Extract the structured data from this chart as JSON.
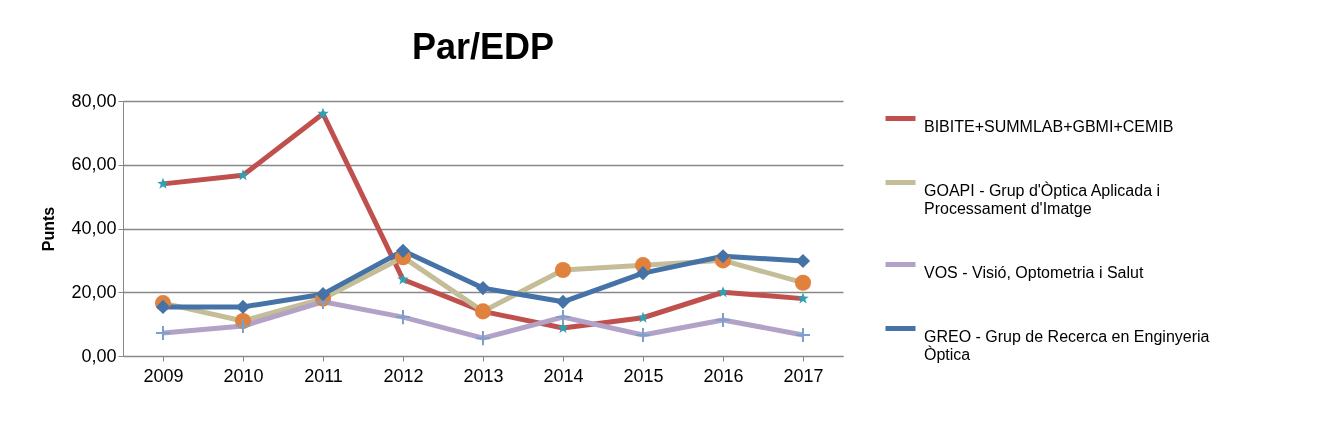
{
  "chart_data": {
    "type": "line",
    "title": "Par/EDP",
    "ylabel": "Punts",
    "categories": [
      "2009",
      "2010",
      "2011",
      "2012",
      "2013",
      "2014",
      "2015",
      "2016",
      "2017"
    ],
    "series": [
      {
        "name": "BIBITE+SUMMLAB+GBMI+CEMIB",
        "color": "#c0504d",
        "marker": "star",
        "values": [
          54,
          56.7,
          76,
          24,
          14,
          8.8,
          12,
          20,
          18
        ]
      },
      {
        "name": "GOAPI - Grup d'Òptica Aplicada i Processament d'Imatge",
        "color": "#c4bd97",
        "marker": "circle",
        "values": [
          16.6,
          11,
          18,
          31,
          14,
          27,
          28.5,
          30,
          23
        ]
      },
      {
        "name": "VOS - Visió, Optometria i Salut",
        "color": "#b3a2c7",
        "marker": "cross",
        "values": [
          7.2,
          9.4,
          17,
          12.2,
          5.6,
          12.2,
          6.6,
          11.3,
          6.6
        ]
      },
      {
        "name": "GREO - Grup de Recerca en Enginyeria Òptica",
        "color": "#4572a7",
        "marker": "diamond",
        "values": [
          15.4,
          15.4,
          19.4,
          33,
          21.3,
          17,
          26,
          31.3,
          29.8
        ]
      }
    ],
    "ylim": [
      0,
      80
    ],
    "yticks": [
      {
        "value": 0,
        "label": "0,00"
      },
      {
        "value": 20,
        "label": "20,00"
      },
      {
        "value": 40,
        "label": "40,00"
      },
      {
        "value": 60,
        "label": "60,00"
      },
      {
        "value": 80,
        "label": "80,00"
      }
    ],
    "grid": "y",
    "legend": "right",
    "line_style": "solid"
  }
}
